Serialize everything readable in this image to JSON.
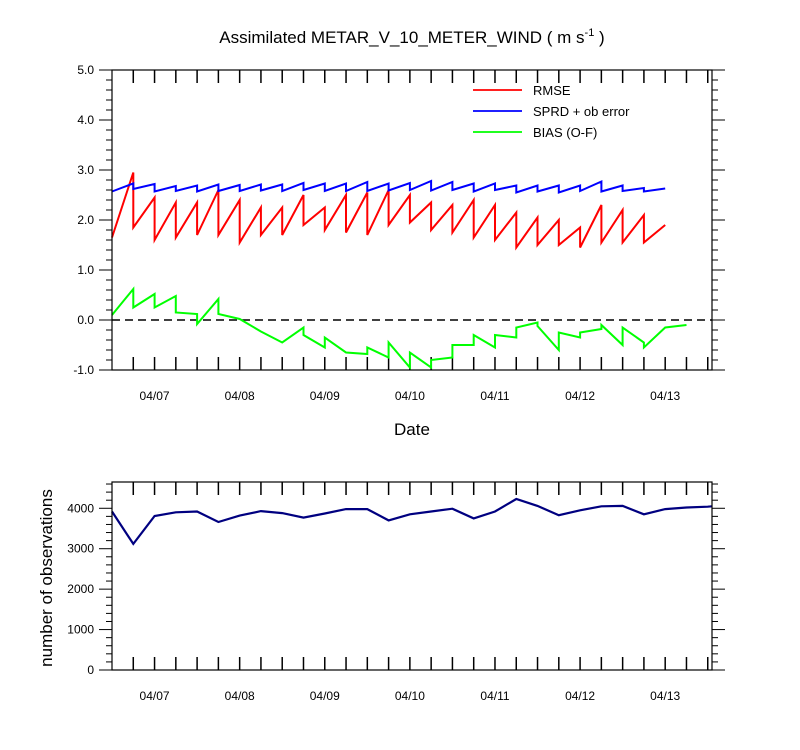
{
  "chart_data": [
    {
      "type": "line",
      "title_main": "Assimilated METAR_V_10_METER_WIND ( m s",
      "title_sup": "-1",
      "title_end": " )",
      "xlabel": "Date",
      "ylabel": "",
      "xlim": [
        0,
        7.05
      ],
      "ylim": [
        -1.0,
        5.0
      ],
      "yticks": [
        "-1.0",
        "0.0",
        "1.0",
        "2.0",
        "3.0",
        "4.0",
        "5.0"
      ],
      "ytick_values": [
        -1,
        0,
        1,
        2,
        3,
        4,
        5
      ],
      "xtick_positions": [
        0.5,
        1.5,
        2.5,
        3.5,
        4.5,
        5.5,
        6.5
      ],
      "xtick_labels": [
        "04/07",
        "04/08",
        "04/09",
        "04/10",
        "04/11",
        "04/12",
        "04/13"
      ],
      "grid": false,
      "legend_position": "top-right",
      "zero_line": true,
      "series": [
        {
          "name": "RMSE",
          "color": "#ff0000",
          "points": [
            [
              0.0,
              1.65
            ],
            [
              0.25,
              2.95
            ],
            [
              0.25,
              1.85
            ],
            [
              0.5,
              2.45
            ],
            [
              0.5,
              1.6
            ],
            [
              0.75,
              2.35
            ],
            [
              0.75,
              1.65
            ],
            [
              1.0,
              2.35
            ],
            [
              1.0,
              1.7
            ],
            [
              1.25,
              2.6
            ],
            [
              1.25,
              1.7
            ],
            [
              1.5,
              2.4
            ],
            [
              1.5,
              1.55
            ],
            [
              1.75,
              2.25
            ],
            [
              1.75,
              1.7
            ],
            [
              2.0,
              2.25
            ],
            [
              2.0,
              1.7
            ],
            [
              2.25,
              2.5
            ],
            [
              2.25,
              1.9
            ],
            [
              2.5,
              2.25
            ],
            [
              2.5,
              1.8
            ],
            [
              2.75,
              2.5
            ],
            [
              2.75,
              1.75
            ],
            [
              3.0,
              2.55
            ],
            [
              3.0,
              1.7
            ],
            [
              3.25,
              2.6
            ],
            [
              3.25,
              1.9
            ],
            [
              3.5,
              2.5
            ],
            [
              3.5,
              1.95
            ],
            [
              3.75,
              2.35
            ],
            [
              3.75,
              1.8
            ],
            [
              4.0,
              2.3
            ],
            [
              4.0,
              1.75
            ],
            [
              4.25,
              2.4
            ],
            [
              4.25,
              1.65
            ],
            [
              4.5,
              2.3
            ],
            [
              4.5,
              1.6
            ],
            [
              4.75,
              2.15
            ],
            [
              4.75,
              1.45
            ],
            [
              5.0,
              2.05
            ],
            [
              5.0,
              1.5
            ],
            [
              5.25,
              2.0
            ],
            [
              5.25,
              1.5
            ],
            [
              5.5,
              1.85
            ],
            [
              5.5,
              1.45
            ],
            [
              5.75,
              2.3
            ],
            [
              5.75,
              1.55
            ],
            [
              6.0,
              2.2
            ],
            [
              6.0,
              1.55
            ],
            [
              6.25,
              2.1
            ],
            [
              6.25,
              1.55
            ],
            [
              6.5,
              1.9
            ]
          ]
        },
        {
          "name": "SPRD + ob error",
          "color": "#0000ff",
          "points": [
            [
              0.0,
              2.57
            ],
            [
              0.25,
              2.73
            ],
            [
              0.25,
              2.62
            ],
            [
              0.5,
              2.72
            ],
            [
              0.5,
              2.57
            ],
            [
              0.75,
              2.68
            ],
            [
              0.75,
              2.58
            ],
            [
              1.0,
              2.69
            ],
            [
              1.0,
              2.57
            ],
            [
              1.25,
              2.71
            ],
            [
              1.25,
              2.58
            ],
            [
              1.5,
              2.7
            ],
            [
              1.5,
              2.58
            ],
            [
              1.75,
              2.71
            ],
            [
              1.75,
              2.59
            ],
            [
              2.0,
              2.71
            ],
            [
              2.0,
              2.58
            ],
            [
              2.25,
              2.74
            ],
            [
              2.25,
              2.6
            ],
            [
              2.5,
              2.73
            ],
            [
              2.5,
              2.58
            ],
            [
              2.75,
              2.73
            ],
            [
              2.75,
              2.58
            ],
            [
              3.0,
              2.76
            ],
            [
              3.0,
              2.58
            ],
            [
              3.25,
              2.73
            ],
            [
              3.25,
              2.59
            ],
            [
              3.5,
              2.74
            ],
            [
              3.5,
              2.6
            ],
            [
              3.75,
              2.78
            ],
            [
              3.75,
              2.59
            ],
            [
              4.0,
              2.76
            ],
            [
              4.0,
              2.6
            ],
            [
              4.25,
              2.73
            ],
            [
              4.25,
              2.57
            ],
            [
              4.5,
              2.73
            ],
            [
              4.5,
              2.6
            ],
            [
              4.75,
              2.69
            ],
            [
              4.75,
              2.55
            ],
            [
              5.0,
              2.69
            ],
            [
              5.0,
              2.57
            ],
            [
              5.25,
              2.69
            ],
            [
              5.25,
              2.55
            ],
            [
              5.5,
              2.69
            ],
            [
              5.5,
              2.58
            ],
            [
              5.75,
              2.77
            ],
            [
              5.75,
              2.57
            ],
            [
              6.0,
              2.69
            ],
            [
              6.0,
              2.58
            ],
            [
              6.25,
              2.64
            ],
            [
              6.25,
              2.57
            ],
            [
              6.5,
              2.63
            ]
          ]
        },
        {
          "name": "BIAS (O-F)",
          "color": "#00ff00",
          "points": [
            [
              0.0,
              0.1
            ],
            [
              0.25,
              0.62
            ],
            [
              0.25,
              0.25
            ],
            [
              0.5,
              0.52
            ],
            [
              0.5,
              0.25
            ],
            [
              0.75,
              0.48
            ],
            [
              0.75,
              0.15
            ],
            [
              1.0,
              0.12
            ],
            [
              1.0,
              -0.08
            ],
            [
              1.25,
              0.42
            ],
            [
              1.25,
              0.12
            ],
            [
              1.5,
              0.02
            ],
            [
              1.75,
              -0.23
            ],
            [
              2.0,
              -0.45
            ],
            [
              2.25,
              -0.15
            ],
            [
              2.25,
              -0.3
            ],
            [
              2.5,
              -0.55
            ],
            [
              2.5,
              -0.35
            ],
            [
              2.75,
              -0.65
            ],
            [
              3.0,
              -0.68
            ],
            [
              3.0,
              -0.55
            ],
            [
              3.25,
              -0.75
            ],
            [
              3.25,
              -0.45
            ],
            [
              3.5,
              -0.95
            ],
            [
              3.5,
              -0.65
            ],
            [
              3.75,
              -0.95
            ],
            [
              3.75,
              -0.8
            ],
            [
              4.0,
              -0.75
            ],
            [
              4.0,
              -0.5
            ],
            [
              4.25,
              -0.5
            ],
            [
              4.25,
              -0.3
            ],
            [
              4.5,
              -0.55
            ],
            [
              4.5,
              -0.3
            ],
            [
              4.75,
              -0.35
            ],
            [
              4.75,
              -0.15
            ],
            [
              5.0,
              -0.05
            ],
            [
              5.0,
              -0.12
            ],
            [
              5.25,
              -0.6
            ],
            [
              5.25,
              -0.25
            ],
            [
              5.5,
              -0.35
            ],
            [
              5.5,
              -0.25
            ],
            [
              5.75,
              -0.18
            ],
            [
              5.75,
              -0.1
            ],
            [
              6.0,
              -0.5
            ],
            [
              6.0,
              -0.15
            ],
            [
              6.25,
              -0.45
            ],
            [
              6.25,
              -0.55
            ],
            [
              6.5,
              -0.15
            ],
            [
              6.75,
              -0.1
            ]
          ]
        }
      ]
    },
    {
      "type": "line",
      "title": "",
      "xlabel": "",
      "ylabel": "number of observations",
      "xlim": [
        0,
        7.05
      ],
      "ylim": [
        0,
        4650
      ],
      "yticks": [
        "0",
        "1000",
        "2000",
        "3000",
        "4000"
      ],
      "ytick_values": [
        0,
        1000,
        2000,
        3000,
        4000
      ],
      "xtick_positions": [
        0.5,
        1.5,
        2.5,
        3.5,
        4.5,
        5.5,
        6.5
      ],
      "xtick_labels": [
        "04/07",
        "04/08",
        "04/09",
        "04/10",
        "04/11",
        "04/12",
        "04/13"
      ],
      "grid": false,
      "series": [
        {
          "color": "#000080",
          "points": [
            [
              0.0,
              3920
            ],
            [
              0.25,
              3120
            ],
            [
              0.5,
              3810
            ],
            [
              0.75,
              3900
            ],
            [
              1.0,
              3920
            ],
            [
              1.25,
              3660
            ],
            [
              1.5,
              3820
            ],
            [
              1.75,
              3930
            ],
            [
              2.0,
              3880
            ],
            [
              2.25,
              3770
            ],
            [
              2.5,
              3870
            ],
            [
              2.75,
              3980
            ],
            [
              3.0,
              3980
            ],
            [
              3.25,
              3700
            ],
            [
              3.5,
              3850
            ],
            [
              3.75,
              3920
            ],
            [
              4.0,
              3990
            ],
            [
              4.25,
              3750
            ],
            [
              4.5,
              3920
            ],
            [
              4.75,
              4230
            ],
            [
              5.0,
              4060
            ],
            [
              5.25,
              3830
            ],
            [
              5.5,
              3950
            ],
            [
              5.75,
              4050
            ],
            [
              6.0,
              4060
            ],
            [
              6.25,
              3850
            ],
            [
              6.5,
              3980
            ],
            [
              6.75,
              4020
            ],
            [
              7.0,
              4040
            ],
            [
              7.05,
              4050
            ]
          ]
        }
      ]
    }
  ]
}
